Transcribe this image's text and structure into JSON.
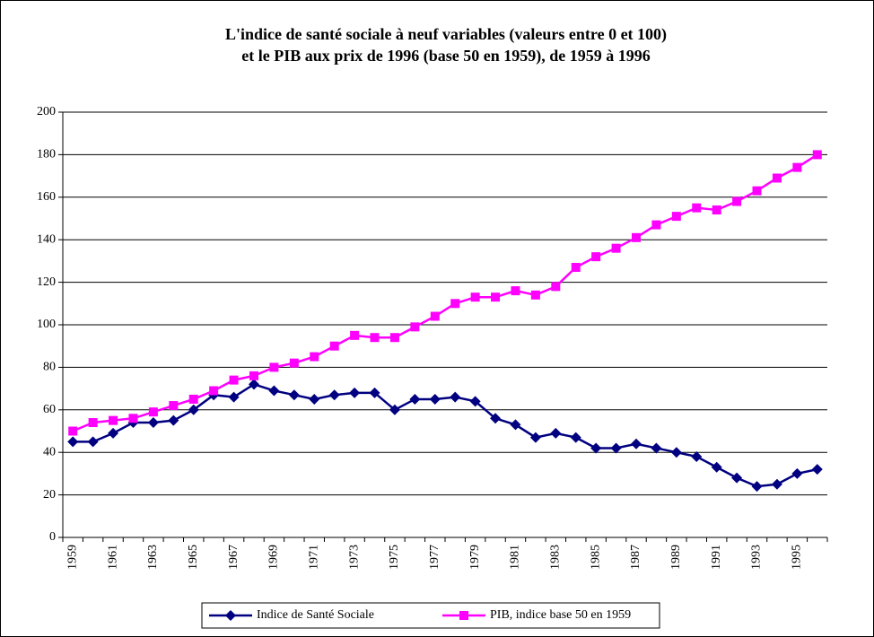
{
  "chart_data": {
    "type": "line",
    "title": "L'indice de santé sociale à neuf variables (valeurs entre 0 et 100)",
    "subtitle": "et le PIB aux prix de 1996 (base 50 en 1959), de 1959 à 1996",
    "categories": [
      "1959",
      null,
      "1961",
      null,
      "1963",
      null,
      "1965",
      null,
      "1967",
      null,
      "1969",
      null,
      "1971",
      null,
      "1973",
      null,
      "1975",
      null,
      "1977",
      null,
      "1979",
      null,
      "1981",
      null,
      "1983",
      null,
      "1985",
      null,
      "1987",
      null,
      "1989",
      null,
      "1991",
      null,
      "1993",
      null,
      "1995",
      null
    ],
    "series": [
      {
        "name": "Indice de Santé Sociale",
        "color": "#000080",
        "marker": "diamond",
        "values": [
          45,
          45,
          49,
          54,
          54,
          55,
          60,
          67,
          66,
          72,
          69,
          67,
          65,
          67,
          68,
          68,
          60,
          65,
          65,
          66,
          64,
          56,
          53,
          47,
          49,
          47,
          42,
          42,
          44,
          42,
          40,
          38,
          33,
          28,
          24,
          25,
          30,
          32
        ]
      },
      {
        "name": "PIB, indice base 50 en 1959",
        "color": "#ff00ff",
        "marker": "square",
        "values": [
          50,
          54,
          55,
          56,
          59,
          62,
          65,
          69,
          74,
          76,
          80,
          82,
          85,
          90,
          95,
          94,
          94,
          99,
          104,
          110,
          113,
          113,
          116,
          114,
          118,
          127,
          132,
          136,
          141,
          147,
          151,
          155,
          154,
          158,
          163,
          169,
          174,
          180
        ]
      }
    ],
    "ylim": [
      0,
      200
    ],
    "yticks": [
      0,
      20,
      40,
      60,
      80,
      100,
      120,
      140,
      160,
      180,
      200
    ],
    "grid": true,
    "legend": "bottom"
  }
}
